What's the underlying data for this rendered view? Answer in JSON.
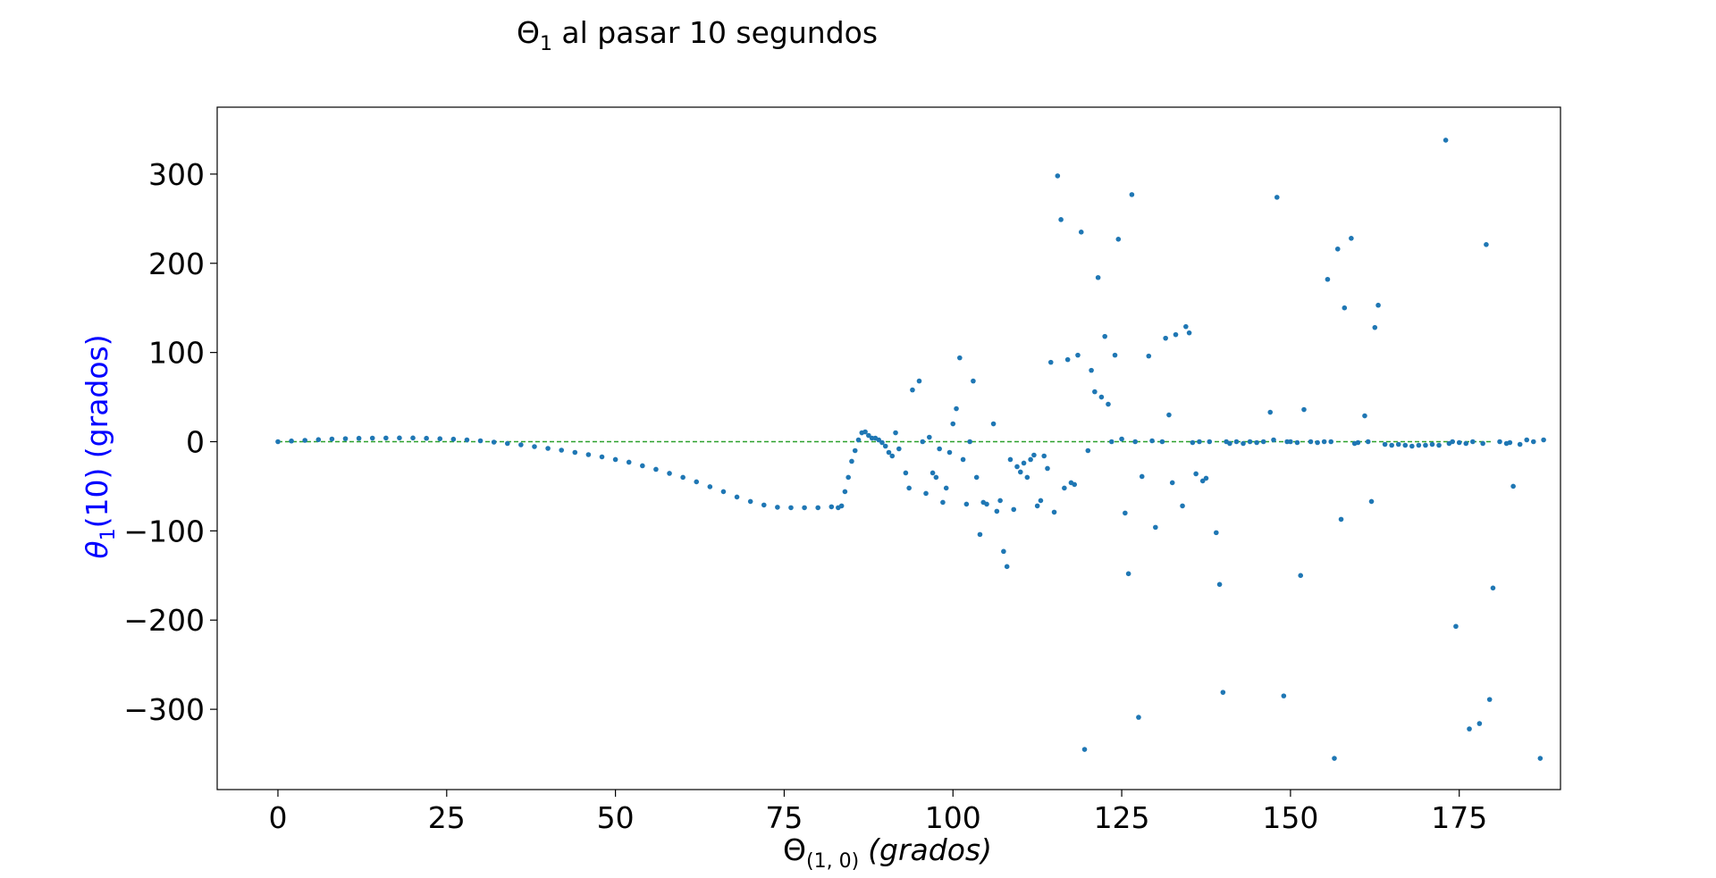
{
  "chart_data": {
    "type": "scatter",
    "title_main": "Θ",
    "title_sub": "1",
    "title_rest": " al pasar 10 segundos",
    "xlabel_main": "Θ",
    "xlabel_sub": "(1, 0)",
    "xlabel_rest": "(grados)",
    "ylabel_main": "θ",
    "ylabel_sub": "1",
    "ylabel_rest": "(10) (grados)",
    "xlim": [
      -9,
      190
    ],
    "ylim": [
      -390,
      375
    ],
    "xticks": [
      0,
      25,
      50,
      75,
      100,
      125,
      150,
      175
    ],
    "xtick_labels": [
      "0",
      "25",
      "50",
      "75",
      "100",
      "125",
      "150",
      "175"
    ],
    "yticks": [
      300,
      200,
      100,
      0,
      -100,
      -200,
      -300
    ],
    "ytick_labels": [
      "300",
      "200",
      "100",
      "0",
      "−100",
      "−200",
      "−300"
    ],
    "grid": false,
    "reference_line": {
      "y": 0,
      "x_range": [
        0,
        180
      ],
      "style": "dashed",
      "color": "#2ca02c"
    },
    "colors": {
      "points": "#1f77b4",
      "ylabel": "#0000ff",
      "axes": "#000000"
    },
    "series": [
      {
        "values": [
          [
            0,
            0
          ],
          [
            2,
            0.8
          ],
          [
            4,
            1.5
          ],
          [
            6,
            2.3
          ],
          [
            8,
            3
          ],
          [
            10,
            3.4
          ],
          [
            12,
            3.8
          ],
          [
            14,
            4
          ],
          [
            16,
            4.1
          ],
          [
            18,
            4.2
          ],
          [
            20,
            4.2
          ],
          [
            22,
            3.8
          ],
          [
            24,
            3.3
          ],
          [
            26,
            2.8
          ],
          [
            28,
            2
          ],
          [
            30,
            1
          ],
          [
            32,
            -0.5
          ],
          [
            34,
            -2
          ],
          [
            36,
            -3.5
          ],
          [
            38,
            -5.5
          ],
          [
            40,
            -7.5
          ],
          [
            42,
            -9.5
          ],
          [
            44,
            -12
          ],
          [
            46,
            -14.5
          ],
          [
            48,
            -17
          ],
          [
            50,
            -20
          ],
          [
            52,
            -23
          ],
          [
            54,
            -27
          ],
          [
            56,
            -31
          ],
          [
            58,
            -35.5
          ],
          [
            60,
            -40
          ],
          [
            62,
            -45
          ],
          [
            64,
            -50.5
          ],
          [
            66,
            -56
          ],
          [
            68,
            -62
          ],
          [
            70,
            -67
          ],
          [
            72,
            -71
          ],
          [
            74,
            -73.5
          ],
          [
            76,
            -74
          ],
          [
            78,
            -74
          ],
          [
            80,
            -74
          ],
          [
            82,
            -73
          ],
          [
            83,
            -74
          ],
          [
            83.5,
            -72
          ],
          [
            84,
            -56
          ],
          [
            84.5,
            -40
          ],
          [
            85,
            -22
          ],
          [
            85.5,
            -10
          ],
          [
            86,
            2
          ],
          [
            86.5,
            10
          ],
          [
            87,
            11
          ],
          [
            87.5,
            7
          ],
          [
            88,
            4
          ],
          [
            88.5,
            4
          ],
          [
            89,
            2
          ],
          [
            89.5,
            -1
          ],
          [
            90,
            -5
          ],
          [
            90.5,
            -12
          ],
          [
            91,
            -16
          ],
          [
            91.5,
            10
          ],
          [
            92,
            -8
          ],
          [
            93,
            -35
          ],
          [
            93.5,
            -52
          ],
          [
            94,
            58
          ],
          [
            95,
            68
          ],
          [
            95.5,
            0
          ],
          [
            96,
            -58
          ],
          [
            96.5,
            5
          ],
          [
            97,
            -35
          ],
          [
            97.5,
            -40
          ],
          [
            98,
            -8
          ],
          [
            98.5,
            -68
          ],
          [
            99,
            -52
          ],
          [
            99.5,
            -12
          ],
          [
            100,
            20
          ],
          [
            100.5,
            37
          ],
          [
            101,
            94
          ],
          [
            101.5,
            -20
          ],
          [
            102,
            -70
          ],
          [
            102.5,
            0
          ],
          [
            103,
            68
          ],
          [
            103.5,
            -40
          ],
          [
            104,
            -104
          ],
          [
            104.5,
            -68
          ],
          [
            105,
            -70
          ],
          [
            106,
            20
          ],
          [
            106.5,
            -78
          ],
          [
            107,
            -66
          ],
          [
            107.5,
            -123
          ],
          [
            108,
            -140
          ],
          [
            108.5,
            -20
          ],
          [
            109,
            -76
          ],
          [
            109.5,
            -28
          ],
          [
            110,
            -34
          ],
          [
            110.5,
            -24
          ],
          [
            111,
            -40
          ],
          [
            111.5,
            -20
          ],
          [
            112,
            -15
          ],
          [
            112.5,
            -72
          ],
          [
            113,
            -66
          ],
          [
            113.5,
            -16
          ],
          [
            114,
            -30
          ],
          [
            114.5,
            89
          ],
          [
            115,
            -79
          ],
          [
            115.5,
            298
          ],
          [
            116,
            249
          ],
          [
            116.5,
            -52
          ],
          [
            117,
            92
          ],
          [
            117.5,
            -46
          ],
          [
            118,
            -48
          ],
          [
            118.5,
            97
          ],
          [
            119,
            235
          ],
          [
            119.5,
            -345
          ],
          [
            120,
            -10
          ],
          [
            120.5,
            80
          ],
          [
            121,
            56
          ],
          [
            121.5,
            184
          ],
          [
            122,
            50
          ],
          [
            122.5,
            118
          ],
          [
            123,
            42
          ],
          [
            123.5,
            0
          ],
          [
            124,
            97
          ],
          [
            124.5,
            227
          ],
          [
            125,
            3
          ],
          [
            125.5,
            -80
          ],
          [
            126,
            -148
          ],
          [
            126.5,
            277
          ],
          [
            127,
            0
          ],
          [
            127.5,
            -309
          ],
          [
            128,
            -39
          ],
          [
            129,
            96
          ],
          [
            129.5,
            1
          ],
          [
            130,
            -96
          ],
          [
            131,
            0
          ],
          [
            131.5,
            116
          ],
          [
            132,
            30
          ],
          [
            132.5,
            -46
          ],
          [
            133,
            120
          ],
          [
            134,
            -72
          ],
          [
            134.5,
            129
          ],
          [
            135,
            122
          ],
          [
            135.5,
            -1
          ],
          [
            136,
            -36
          ],
          [
            136.5,
            0
          ],
          [
            137,
            -44
          ],
          [
            137.5,
            -41
          ],
          [
            138,
            0
          ],
          [
            139,
            -102
          ],
          [
            139.5,
            -160
          ],
          [
            140,
            -281
          ],
          [
            140.5,
            0
          ],
          [
            141,
            -2
          ],
          [
            142,
            0
          ],
          [
            143,
            -2
          ],
          [
            144,
            0
          ],
          [
            145,
            -1
          ],
          [
            146,
            0
          ],
          [
            147,
            33
          ],
          [
            147.5,
            2
          ],
          [
            148,
            274
          ],
          [
            149,
            -285
          ],
          [
            149.5,
            0
          ],
          [
            150,
            0
          ],
          [
            151,
            -1
          ],
          [
            151.5,
            -150
          ],
          [
            152,
            36
          ],
          [
            153,
            0
          ],
          [
            154,
            -1
          ],
          [
            155,
            0
          ],
          [
            155.5,
            182
          ],
          [
            156,
            0
          ],
          [
            156.5,
            -355
          ],
          [
            157,
            216
          ],
          [
            157.5,
            -87
          ],
          [
            158,
            150
          ],
          [
            159,
            228
          ],
          [
            159.5,
            -2
          ],
          [
            160,
            -1
          ],
          [
            161,
            29
          ],
          [
            161.5,
            0
          ],
          [
            162,
            -67
          ],
          [
            162.5,
            128
          ],
          [
            163,
            153
          ],
          [
            164,
            -3
          ],
          [
            165,
            -4
          ],
          [
            166,
            -3
          ],
          [
            167,
            -4
          ],
          [
            168,
            -5
          ],
          [
            169,
            -4
          ],
          [
            170,
            -4
          ],
          [
            171,
            -3
          ],
          [
            172,
            -4
          ],
          [
            173,
            338
          ],
          [
            173.5,
            -2
          ],
          [
            174,
            0
          ],
          [
            174.5,
            -207
          ],
          [
            175,
            -1
          ],
          [
            176,
            -2
          ],
          [
            176.5,
            -322
          ],
          [
            177,
            0
          ],
          [
            178,
            -316
          ],
          [
            178.5,
            -2
          ],
          [
            179,
            221
          ],
          [
            179.5,
            -289
          ],
          [
            180,
            -164
          ],
          [
            181,
            0
          ],
          [
            182,
            -2
          ],
          [
            182.5,
            -1
          ],
          [
            183,
            -50
          ],
          [
            184,
            -3
          ],
          [
            185,
            2
          ],
          [
            186,
            0
          ],
          [
            187,
            -355
          ],
          [
            187.5,
            2
          ]
        ]
      }
    ]
  }
}
